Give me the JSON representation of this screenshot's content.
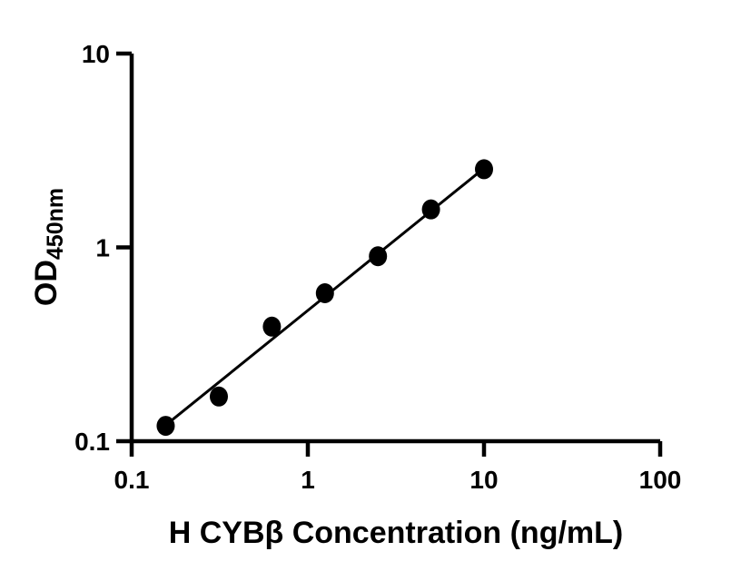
{
  "page": {
    "background_color": "#ffffff"
  },
  "chart_data": {
    "type": "scatter",
    "description": "ELISA standard curve, log-log scatter with linear fit line",
    "xlabel": "H CYBβ Concentration (ng/mL)",
    "ylabel_main": "OD",
    "ylabel_sub": "450nm",
    "x_scale": "log",
    "y_scale": "log",
    "xlim": [
      0.1,
      100
    ],
    "ylim": [
      0.1,
      10
    ],
    "x_ticks": [
      0.1,
      1,
      10,
      100
    ],
    "x_tick_labels": [
      "0.1",
      "1",
      "10",
      "100"
    ],
    "y_ticks": [
      0.1,
      1,
      10
    ],
    "y_tick_labels": [
      "0.1",
      "1",
      "10"
    ],
    "grid": false,
    "legend": false,
    "axis_color": "#000000",
    "marker_color": "#000000",
    "line_color": "#000000",
    "series": [
      {
        "name": "standard-curve-points",
        "marker": "filled-circle",
        "x": [
          0.156,
          0.3125,
          0.625,
          1.25,
          2.5,
          5,
          10
        ],
        "y": [
          0.12,
          0.17,
          0.39,
          0.58,
          0.9,
          1.57,
          2.53
        ]
      }
    ],
    "trend_line": {
      "x1": 0.156,
      "y1": 0.121,
      "x2": 10,
      "y2": 2.56
    }
  }
}
